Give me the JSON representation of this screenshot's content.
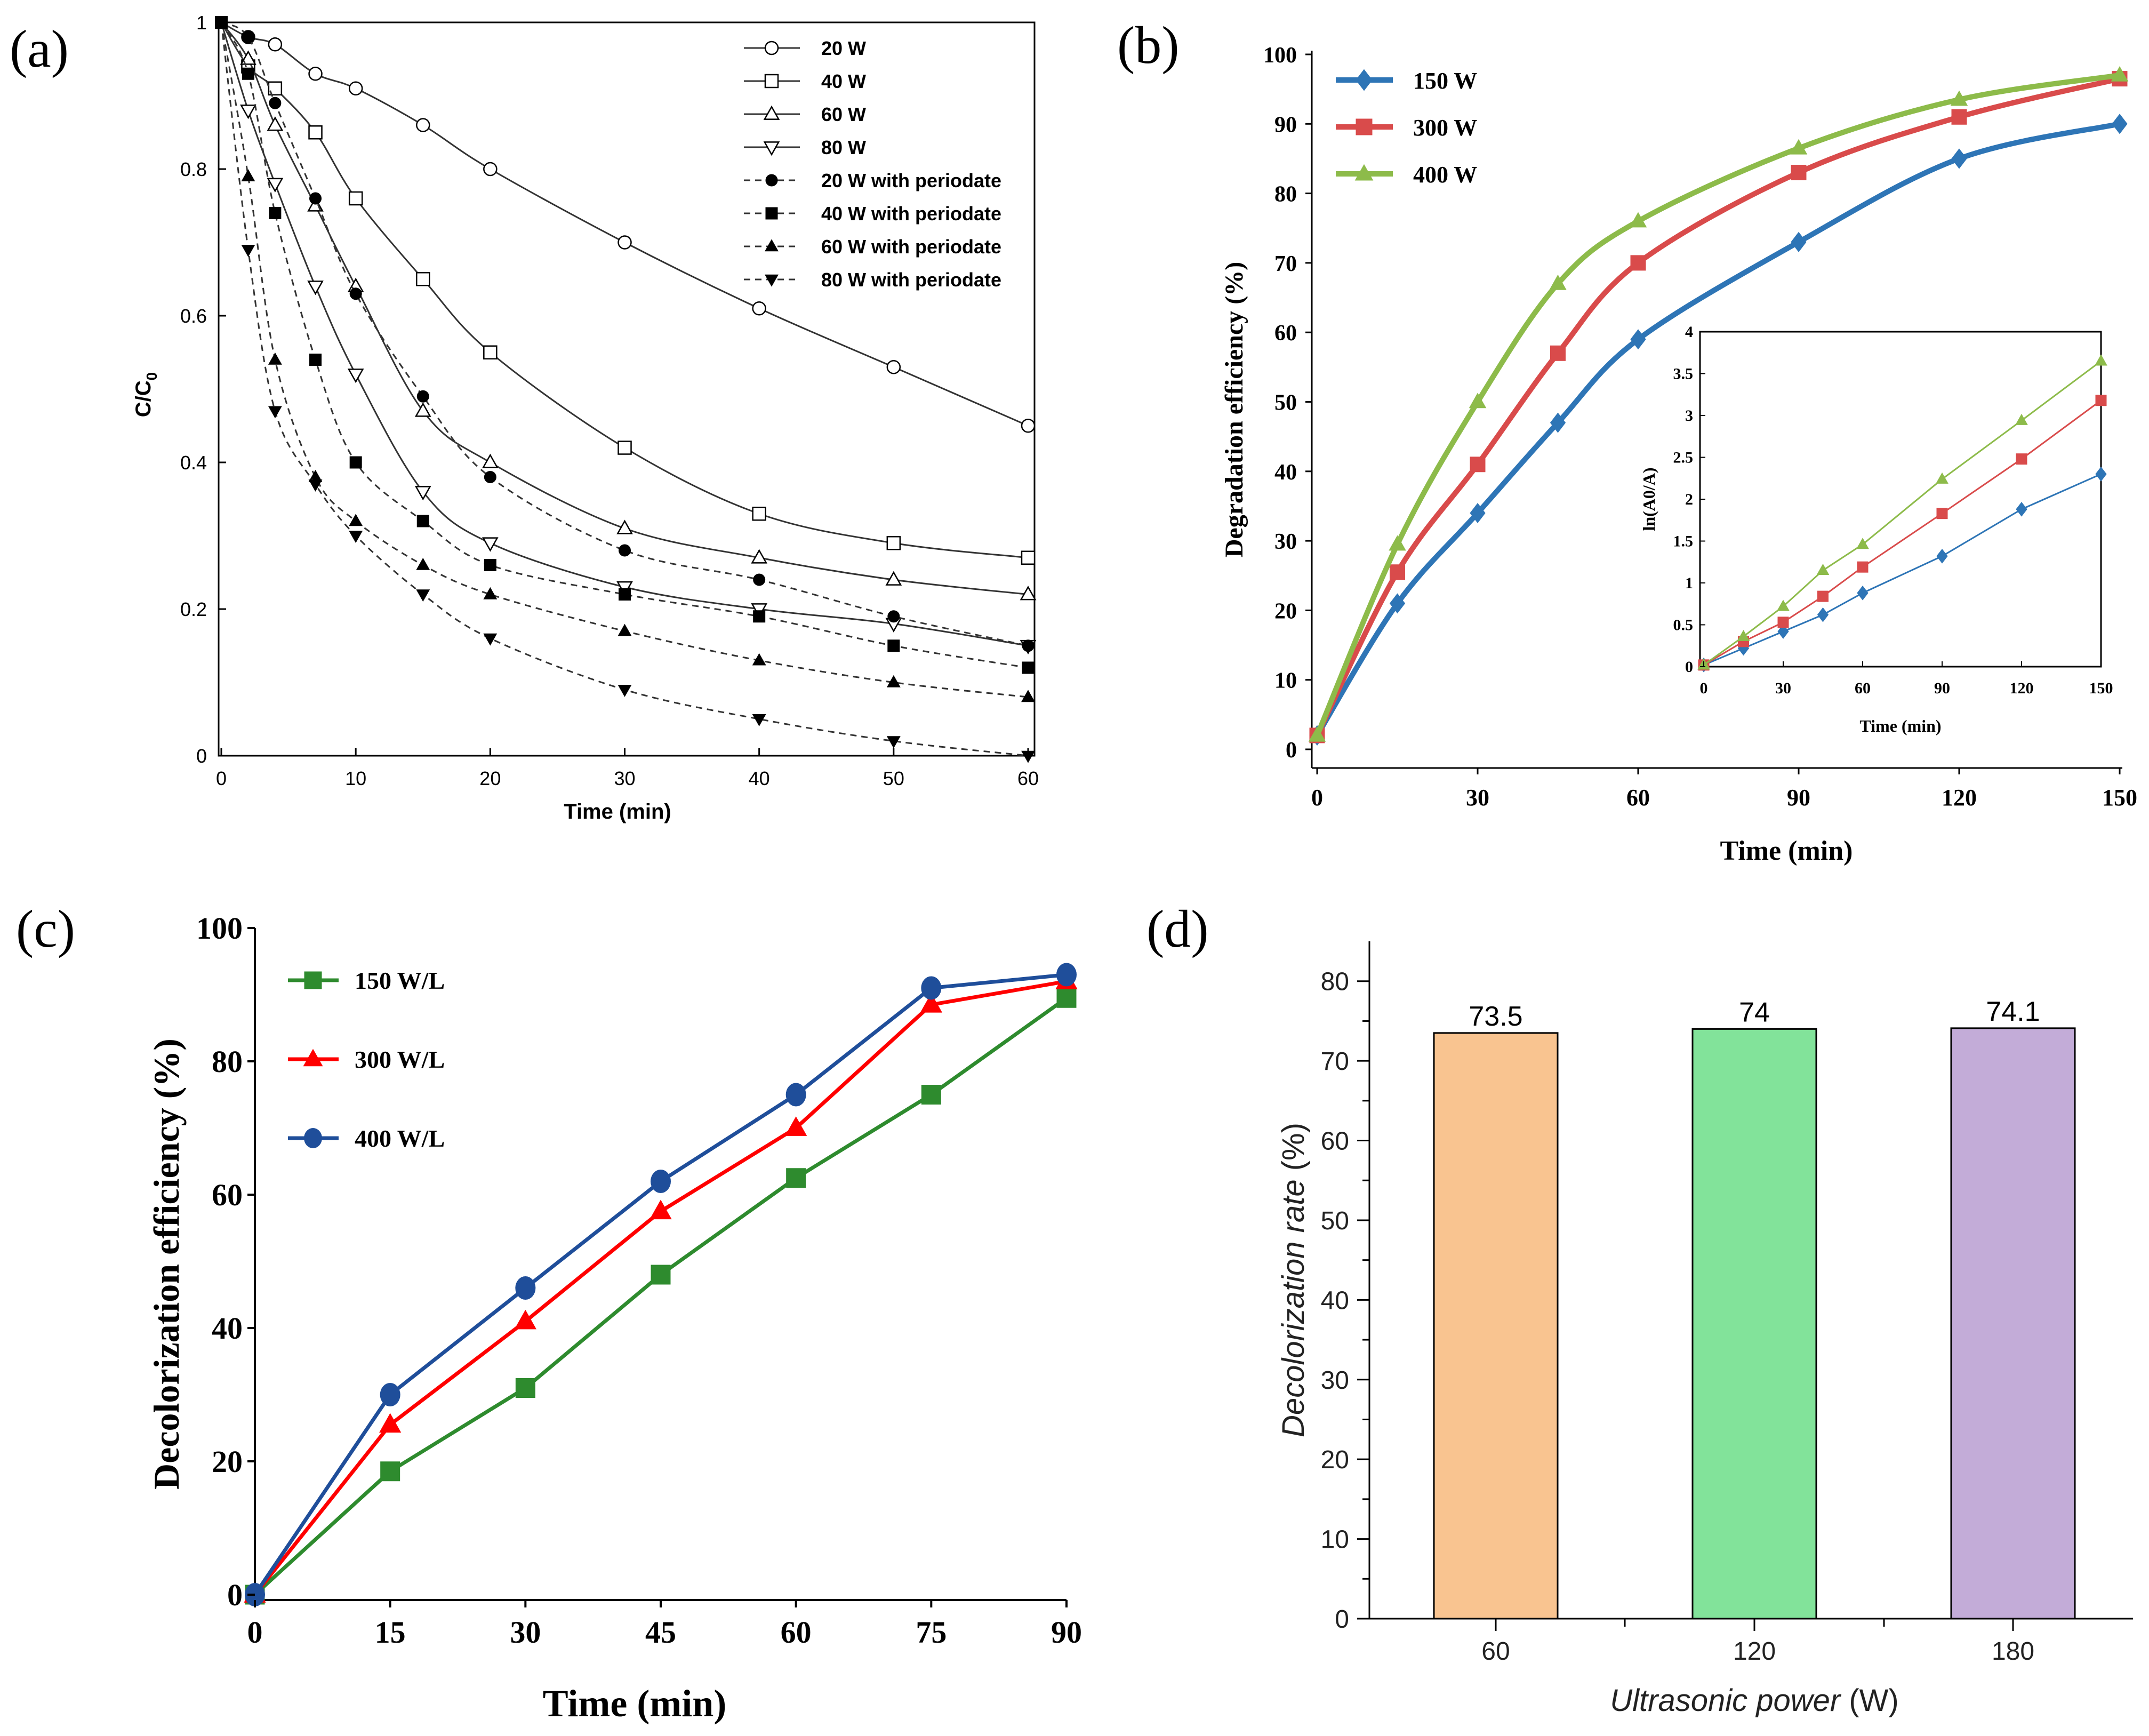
{
  "chart_data": [
    {
      "panel": "(a)",
      "type": "line",
      "xlabel": "Time (min)",
      "ylabel": "C/C",
      "ylabel_sub": "0",
      "xlim": [
        0,
        60
      ],
      "ylim": [
        0,
        1
      ],
      "xticks": [
        0,
        10,
        20,
        30,
        40,
        50,
        60
      ],
      "yticks": [
        0,
        0.2,
        0.4,
        0.6,
        0.8,
        1
      ],
      "ytick_labels": [
        "0",
        "0.2",
        "0.4",
        "0.6",
        "0.8",
        "1"
      ],
      "legend_position": "top-right",
      "series": [
        {
          "name": "20 W",
          "marker": "circle-open",
          "style": "solid",
          "x": [
            0,
            2,
            4,
            7,
            10,
            15,
            20,
            30,
            40,
            50,
            60
          ],
          "y": [
            1,
            0.98,
            0.97,
            0.93,
            0.91,
            0.86,
            0.8,
            0.7,
            0.61,
            0.53,
            0.45
          ]
        },
        {
          "name": "40 W",
          "marker": "square-open",
          "style": "solid",
          "x": [
            0,
            2,
            4,
            7,
            10,
            15,
            20,
            30,
            40,
            50,
            60
          ],
          "y": [
            1,
            0.94,
            0.91,
            0.85,
            0.76,
            0.65,
            0.55,
            0.42,
            0.33,
            0.29,
            0.27
          ]
        },
        {
          "name": "60 W",
          "marker": "triangle-open",
          "style": "solid",
          "x": [
            0,
            2,
            4,
            7,
            10,
            15,
            20,
            30,
            40,
            50,
            60
          ],
          "y": [
            1,
            0.95,
            0.86,
            0.75,
            0.64,
            0.47,
            0.4,
            0.31,
            0.27,
            0.24,
            0.22
          ]
        },
        {
          "name": "80 W",
          "marker": "triangle-down-open",
          "style": "solid",
          "x": [
            0,
            2,
            4,
            7,
            10,
            15,
            20,
            30,
            40,
            50,
            60
          ],
          "y": [
            1,
            0.88,
            0.78,
            0.64,
            0.52,
            0.36,
            0.29,
            0.23,
            0.2,
            0.18,
            0.15
          ]
        },
        {
          "name": "20 W with periodate",
          "marker": "circle-filled",
          "style": "dashed",
          "x": [
            0,
            2,
            4,
            7,
            10,
            15,
            20,
            30,
            40,
            50,
            60
          ],
          "y": [
            1,
            0.98,
            0.89,
            0.76,
            0.63,
            0.49,
            0.38,
            0.28,
            0.24,
            0.19,
            0.15
          ]
        },
        {
          "name": "40 W with periodate",
          "marker": "square-filled",
          "style": "dashed",
          "x": [
            0,
            2,
            4,
            7,
            10,
            15,
            20,
            30,
            40,
            50,
            60
          ],
          "y": [
            1,
            0.93,
            0.74,
            0.54,
            0.4,
            0.32,
            0.26,
            0.22,
            0.19,
            0.15,
            0.12
          ]
        },
        {
          "name": "60 W with periodate",
          "marker": "triangle-filled",
          "style": "dashed",
          "x": [
            0,
            2,
            4,
            7,
            10,
            15,
            20,
            30,
            40,
            50,
            60
          ],
          "y": [
            1,
            0.79,
            0.54,
            0.38,
            0.32,
            0.26,
            0.22,
            0.17,
            0.13,
            0.1,
            0.08
          ]
        },
        {
          "name": "80 W with periodate",
          "marker": "triangle-down-filled",
          "style": "dashed",
          "x": [
            0,
            2,
            4,
            7,
            10,
            15,
            20,
            30,
            40,
            50,
            60
          ],
          "y": [
            1,
            0.69,
            0.47,
            0.37,
            0.3,
            0.22,
            0.16,
            0.09,
            0.05,
            0.02,
            0.0
          ]
        }
      ]
    },
    {
      "panel": "(b)",
      "type": "line",
      "xlabel": "Time (min)",
      "ylabel": "Degradation efficiency (%)",
      "xlim": [
        0,
        150
      ],
      "ylim": [
        0,
        100
      ],
      "xticks": [
        0,
        30,
        60,
        90,
        120,
        150
      ],
      "yticks": [
        0,
        10,
        20,
        30,
        40,
        50,
        60,
        70,
        80,
        90,
        100
      ],
      "legend_position": "top-left",
      "series": [
        {
          "name": "150 W",
          "color": "#2e75b6",
          "marker": "diamond",
          "x": [
            0,
            15,
            30,
            45,
            60,
            90,
            120,
            150
          ],
          "y": [
            2,
            21,
            34,
            47,
            59,
            73,
            85,
            90
          ]
        },
        {
          "name": "300 W",
          "color": "#d94b4b",
          "marker": "square",
          "x": [
            0,
            15,
            30,
            45,
            60,
            90,
            120,
            150
          ],
          "y": [
            2,
            25.5,
            41,
            57,
            70,
            83,
            91,
            96.5
          ]
        },
        {
          "name": "400 W",
          "color": "#8dbb4a",
          "marker": "triangle",
          "x": [
            0,
            15,
            30,
            45,
            60,
            90,
            120,
            150
          ],
          "y": [
            2,
            29.5,
            50,
            67,
            76,
            86.5,
            93.5,
            97
          ]
        }
      ],
      "inset": {
        "type": "line",
        "xlabel": "Time (min)",
        "ylabel": "ln(A0/A)",
        "xlim": [
          0,
          150
        ],
        "ylim": [
          0,
          4
        ],
        "xticks": [
          0,
          30,
          60,
          90,
          120,
          150
        ],
        "yticks": [
          0,
          0.5,
          1,
          1.5,
          2,
          2.5,
          3,
          3.5,
          4
        ],
        "series": [
          {
            "name": "150 W",
            "color": "#2e75b6",
            "marker": "diamond",
            "x": [
              0,
              15,
              30,
              45,
              60,
              90,
              120,
              150
            ],
            "y": [
              0.02,
              0.22,
              0.42,
              0.62,
              0.88,
              1.32,
              1.88,
              2.3
            ]
          },
          {
            "name": "300 W",
            "color": "#d94b4b",
            "marker": "square",
            "x": [
              0,
              15,
              30,
              45,
              60,
              90,
              120,
              150
            ],
            "y": [
              0.02,
              0.3,
              0.53,
              0.84,
              1.19,
              1.83,
              2.48,
              3.18
            ]
          },
          {
            "name": "400 W",
            "color": "#8dbb4a",
            "marker": "triangle",
            "x": [
              0,
              15,
              30,
              45,
              60,
              90,
              120,
              150
            ],
            "y": [
              0.02,
              0.36,
              0.72,
              1.15,
              1.46,
              2.24,
              2.94,
              3.65
            ]
          }
        ]
      }
    },
    {
      "panel": "(c)",
      "type": "line",
      "xlabel": "Time (min)",
      "ylabel": "Decolorization efficiency (%)",
      "xlim": [
        0,
        90
      ],
      "ylim": [
        0,
        100
      ],
      "xticks": [
        0,
        15,
        30,
        45,
        60,
        75,
        90
      ],
      "yticks": [
        0,
        20,
        40,
        60,
        80,
        100
      ],
      "legend_position": "top-left",
      "series": [
        {
          "name": "150 W/L",
          "color": "#2e8b2e",
          "marker": "square",
          "x": [
            0,
            15,
            30,
            45,
            60,
            75,
            90
          ],
          "y": [
            0,
            18.5,
            31,
            48,
            62.5,
            75,
            89.5
          ]
        },
        {
          "name": "300 W/L",
          "color": "#ff0000",
          "marker": "triangle",
          "x": [
            0,
            15,
            30,
            45,
            60,
            75,
            90
          ],
          "y": [
            0,
            25.5,
            41,
            57.5,
            70,
            88.5,
            92
          ]
        },
        {
          "name": "400 W/L",
          "color": "#1f4e9a",
          "marker": "circle",
          "x": [
            0,
            15,
            30,
            45,
            60,
            75,
            90
          ],
          "y": [
            0,
            30,
            46,
            62,
            75,
            91,
            93
          ]
        }
      ]
    },
    {
      "panel": "(d)",
      "type": "bar",
      "xlabel_italic": "Ultrasonic power",
      "xlabel_unit": " (W)",
      "ylabel_italic": "Decolorization rate",
      "ylabel_unit": " (%)",
      "categories": [
        "60",
        "120",
        "180"
      ],
      "values": [
        73.5,
        74,
        74.1
      ],
      "value_labels": [
        "73.5",
        "74",
        "74.1"
      ],
      "colors": [
        "#f9c490",
        "#82e39a",
        "#c3acd8"
      ],
      "ylim": [
        0,
        85
      ],
      "yticks": [
        0,
        10,
        20,
        30,
        40,
        50,
        60,
        70,
        80
      ]
    }
  ]
}
